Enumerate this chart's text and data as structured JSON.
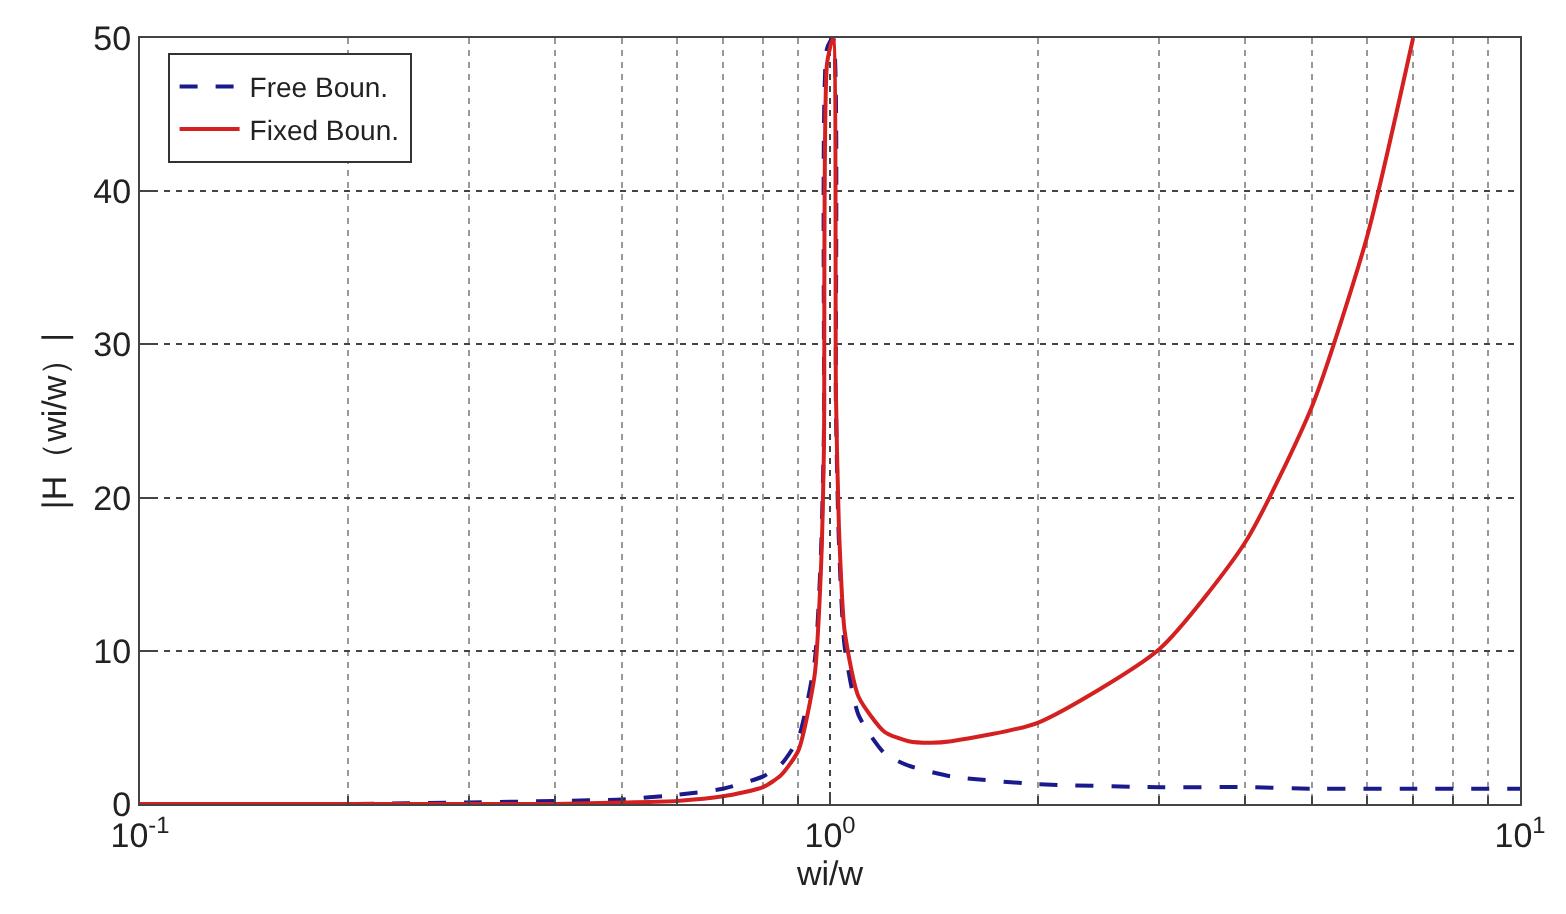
{
  "chart_data": {
    "type": "line",
    "xlabel": "wi/w",
    "ylabel": "|H（wi/w）|",
    "log": "x",
    "xlim": [
      0.1,
      10
    ],
    "xticks": [
      {
        "value": 0.1,
        "label": "10$^{-1}$"
      },
      {
        "value": 1,
        "label": "10$^{0}$"
      },
      {
        "value": 10,
        "label": "10$^{1}$"
      }
    ],
    "ylim": [
      0,
      50
    ],
    "yticks": [
      0,
      10,
      20,
      30,
      40,
      50
    ],
    "grid": true,
    "legend": "top left",
    "marker": "none",
    "series": [
      {
        "name": "Free Boun.",
        "color": "#1a1a8c",
        "line_style": "dashed",
        "x": [
          0.1,
          0.2,
          0.3,
          0.4,
          0.5,
          0.6,
          0.7,
          0.8,
          0.85,
          0.9,
          0.95,
          0.97,
          0.98,
          0.99,
          1.0102,
          1.02,
          1.03,
          1.05,
          1.1,
          1.2,
          1.3,
          1.5,
          2,
          3,
          4,
          5,
          7,
          10
        ],
        "values": [
          0,
          0,
          0.1,
          0.2,
          0.3,
          0.6,
          1.0,
          1.8,
          2.6,
          4.3,
          9.3,
          16.2,
          24.3,
          49.3,
          50,
          25.8,
          17.2,
          10.3,
          5.8,
          3.3,
          2.5,
          1.8,
          1.3,
          1.1,
          1.1,
          1.0,
          1.0,
          1.0
        ]
      },
      {
        "name": "Fixed Boun.",
        "color": "#d42020",
        "line_style": "solid",
        "x": [
          0.1,
          0.2,
          0.3,
          0.4,
          0.5,
          0.6,
          0.7,
          0.8,
          0.85,
          0.9,
          0.95,
          0.97,
          0.98,
          0.99,
          1.0102,
          1.02,
          1.03,
          1.05,
          1.1,
          1.2,
          1.3,
          1.4,
          1.5,
          2,
          3,
          4,
          5,
          6,
          7
        ],
        "values": [
          0,
          0,
          0,
          0,
          0.1,
          0.2,
          0.5,
          1.1,
          1.9,
          3.5,
          8.4,
          15.2,
          23.3,
          48.3,
          50,
          26.8,
          18.2,
          11.3,
          7.0,
          4.7,
          4.1,
          4.0,
          4.1,
          5.3,
          10.1,
          17.1,
          26.0,
          37.0,
          50
        ]
      }
    ]
  }
}
